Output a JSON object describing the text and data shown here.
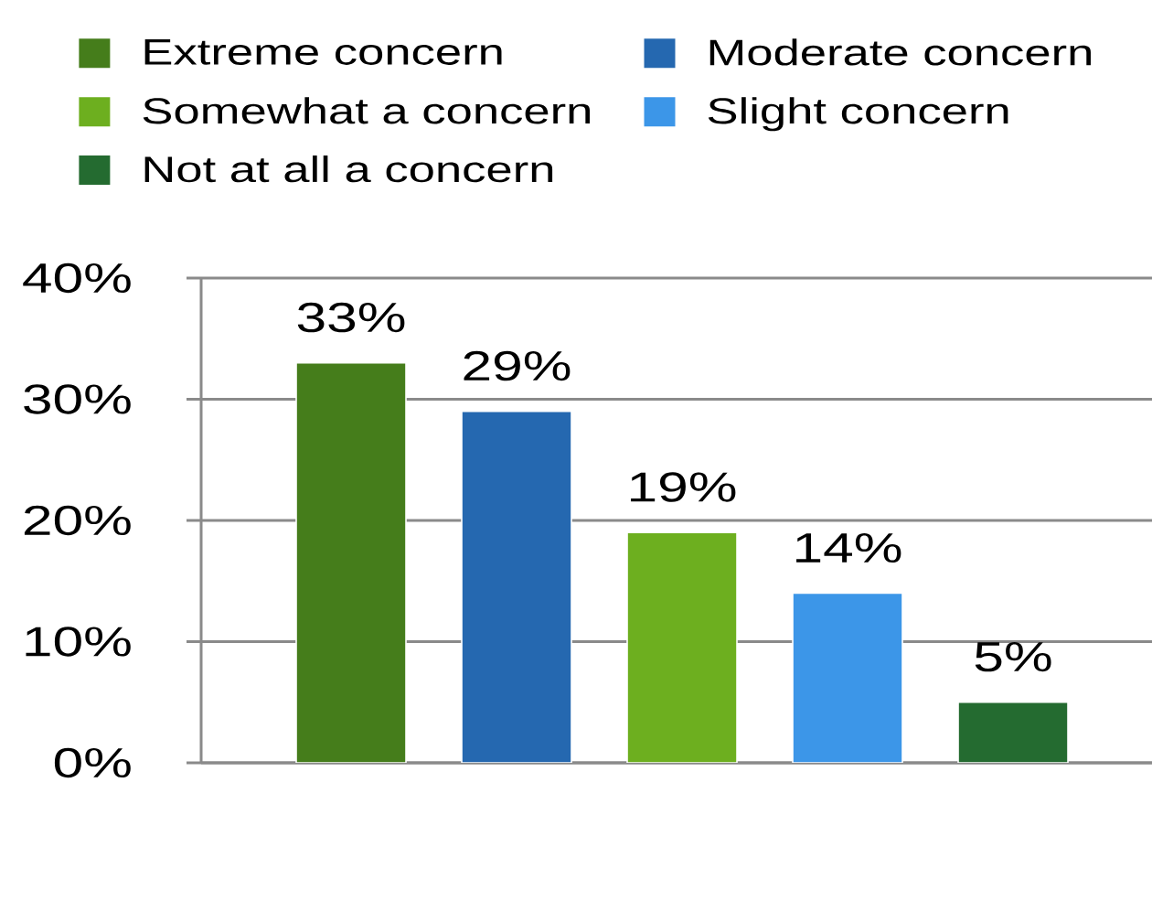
{
  "chart_data": {
    "type": "bar",
    "categories": [
      null
    ],
    "series": [
      {
        "name": "Extreme concern",
        "color": "#457d1b",
        "values": [
          33
        ],
        "value_labels": [
          "33%"
        ]
      },
      {
        "name": "Moderate concern",
        "color": "#2568b0",
        "values": [
          29
        ],
        "value_labels": [
          "29%"
        ]
      },
      {
        "name": "Somewhat a concern",
        "color": "#6daf1f",
        "values": [
          19
        ],
        "value_labels": [
          "19%"
        ]
      },
      {
        "name": "Slight concern",
        "color": "#3c96e8",
        "values": [
          14
        ],
        "value_labels": [
          "14%"
        ]
      },
      {
        "name": "Not at all a concern",
        "color": "#246b30",
        "values": [
          5
        ],
        "value_labels": [
          "5%"
        ]
      }
    ],
    "ylim": [
      0,
      40
    ],
    "yticks": [
      {
        "value": 0,
        "label": "0%"
      },
      {
        "value": 10,
        "label": "10%"
      },
      {
        "value": 20,
        "label": "20%"
      },
      {
        "value": 30,
        "label": "30%"
      },
      {
        "value": 40,
        "label": "40%"
      }
    ],
    "grid": "y",
    "legend": "top",
    "tick_labels": "y"
  }
}
